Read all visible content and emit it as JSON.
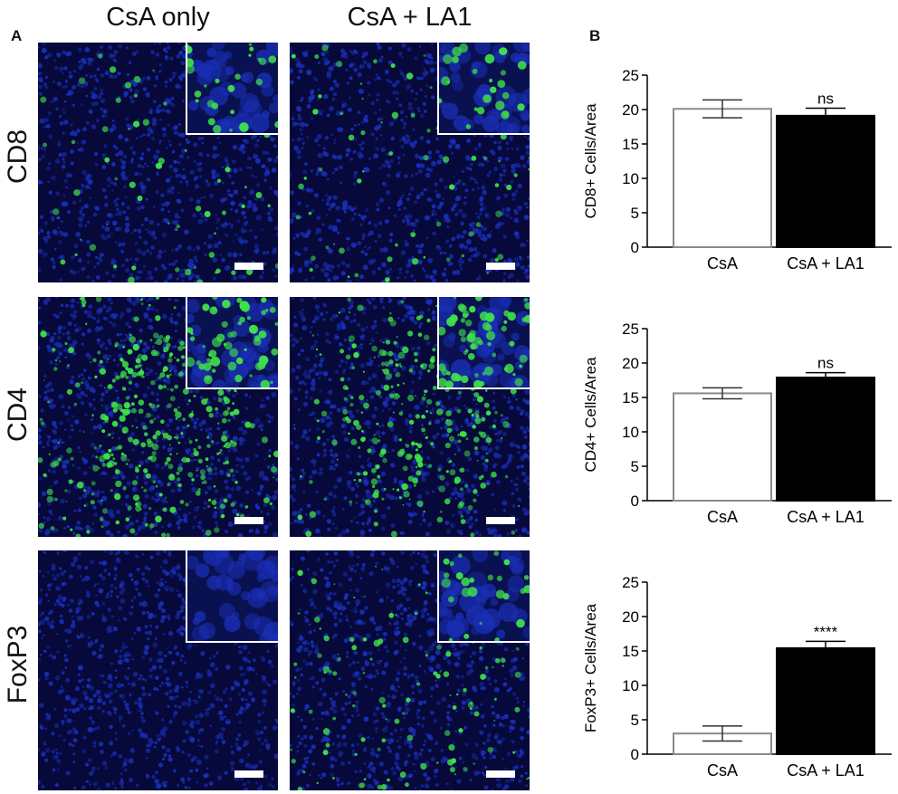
{
  "panel_a": {
    "letter": "A",
    "columns": [
      "CsA only",
      "CsA + LA1"
    ],
    "rows": [
      "CD8",
      "CD4",
      "FoxP3"
    ]
  },
  "panel_b": {
    "letter": "B"
  },
  "colors": {
    "nuclei": "#1a2fb8",
    "stain": "#3ee04a",
    "background": "#06093a",
    "bar_open_edge": "#8a8a8a",
    "bar_filled": "#000000"
  },
  "chart_data": [
    {
      "type": "bar",
      "categories": [
        "CsA",
        "CsA + LA1"
      ],
      "values": [
        20.1,
        19.1
      ],
      "errors": [
        1.3,
        1.1
      ],
      "ylabel": "CD8+ Cells/Area",
      "ylim": [
        0,
        25
      ],
      "yticks": [
        0,
        5,
        10,
        15,
        20,
        25
      ],
      "significance": "ns"
    },
    {
      "type": "bar",
      "categories": [
        "CsA",
        "CsA + LA1"
      ],
      "values": [
        15.6,
        17.9
      ],
      "errors": [
        0.8,
        0.7
      ],
      "ylabel": "CD4+ Cells/Area",
      "ylim": [
        0,
        25
      ],
      "yticks": [
        0,
        5,
        10,
        15,
        20,
        25
      ],
      "significance": "ns"
    },
    {
      "type": "bar",
      "categories": [
        "CsA",
        "CsA + LA1"
      ],
      "values": [
        3.0,
        15.4
      ],
      "errors": [
        1.1,
        1.0
      ],
      "ylabel": "FoxP3+ Cells/Area",
      "ylim": [
        0,
        25
      ],
      "yticks": [
        0,
        5,
        10,
        15,
        20,
        25
      ],
      "significance": "****"
    }
  ]
}
